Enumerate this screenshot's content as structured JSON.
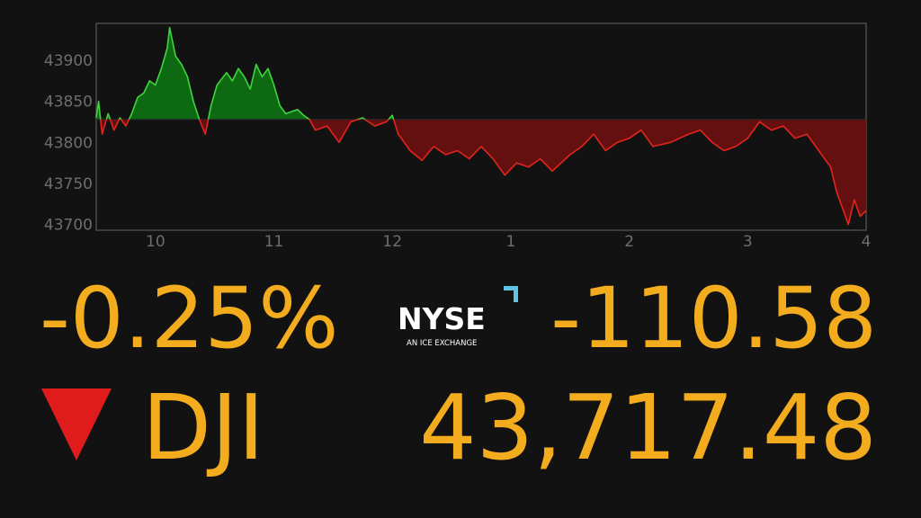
{
  "chart_data": {
    "type": "line",
    "x": [
      9.5,
      9.52,
      9.55,
      9.6,
      9.65,
      9.7,
      9.75,
      9.8,
      9.85,
      9.9,
      9.95,
      10.0,
      10.05,
      10.1,
      10.12,
      10.17,
      10.22,
      10.27,
      10.32,
      10.37,
      10.42,
      10.47,
      10.52,
      10.6,
      10.65,
      10.7,
      10.75,
      10.8,
      10.85,
      10.9,
      10.95,
      11.0,
      11.05,
      11.1,
      11.2,
      11.25,
      11.3,
      11.35,
      11.45,
      11.55,
      11.65,
      11.75,
      11.85,
      11.95,
      12.0,
      12.05,
      12.15,
      12.25,
      12.35,
      12.45,
      12.55,
      12.65,
      12.75,
      12.85,
      12.95,
      13.05,
      13.15,
      13.25,
      13.35,
      13.5,
      13.6,
      13.7,
      13.8,
      13.9,
      14.0,
      14.1,
      14.2,
      14.35,
      14.5,
      14.6,
      14.7,
      14.8,
      14.9,
      15.0,
      15.1,
      15.2,
      15.3,
      15.4,
      15.5,
      15.6,
      15.7,
      15.75,
      15.8,
      15.85,
      15.9,
      15.95,
      16.0
    ],
    "series": [
      {
        "values": [
          43830,
          43850,
          43810,
          43835,
          43815,
          43830,
          43820,
          43835,
          43855,
          43860,
          43875,
          43870,
          43890,
          43915,
          43940,
          43905,
          43895,
          43880,
          43850,
          43828,
          43810,
          43845,
          43870,
          43885,
          43875,
          43890,
          43880,
          43865,
          43895,
          43880,
          43890,
          43870,
          43845,
          43835,
          43840,
          43833,
          43828,
          43815,
          43820,
          43800,
          43825,
          43830,
          43820,
          43825,
          43833,
          43810,
          43790,
          43778,
          43795,
          43785,
          43790,
          43780,
          43795,
          43780,
          43760,
          43775,
          43770,
          43780,
          43765,
          43785,
          43795,
          43810,
          43790,
          43800,
          43805,
          43815,
          43795,
          43800,
          43810,
          43815,
          43800,
          43790,
          43795,
          43805,
          43825,
          43815,
          43820,
          43805,
          43810,
          43790,
          43770,
          43740,
          43720,
          43700,
          43730,
          43710,
          43717
        ]
      }
    ],
    "baseline": 43828.06,
    "up_color": "#3fd43f",
    "up_fill": "#0e6a12",
    "down_color": "#e3241c",
    "down_fill": "#641010",
    "xlim": [
      9.5,
      16
    ],
    "xticks": [
      10,
      11,
      12,
      {
        "value": 13,
        "label": "1"
      },
      {
        "value": 14,
        "label": "2"
      },
      {
        "value": 15,
        "label": "3"
      },
      {
        "value": 16,
        "label": "4"
      }
    ],
    "ylim": [
      43693,
      43945
    ],
    "yticks": [
      43700,
      43750,
      43800,
      43850,
      43900
    ],
    "grid": false
  },
  "quote": {
    "change_percent": "-0.25%",
    "change": "-110.58",
    "symbol": "DJI",
    "price": "43,717.48"
  },
  "logo": {
    "name": "NYSE",
    "tagline": "AN ICE EXCHANGE"
  }
}
